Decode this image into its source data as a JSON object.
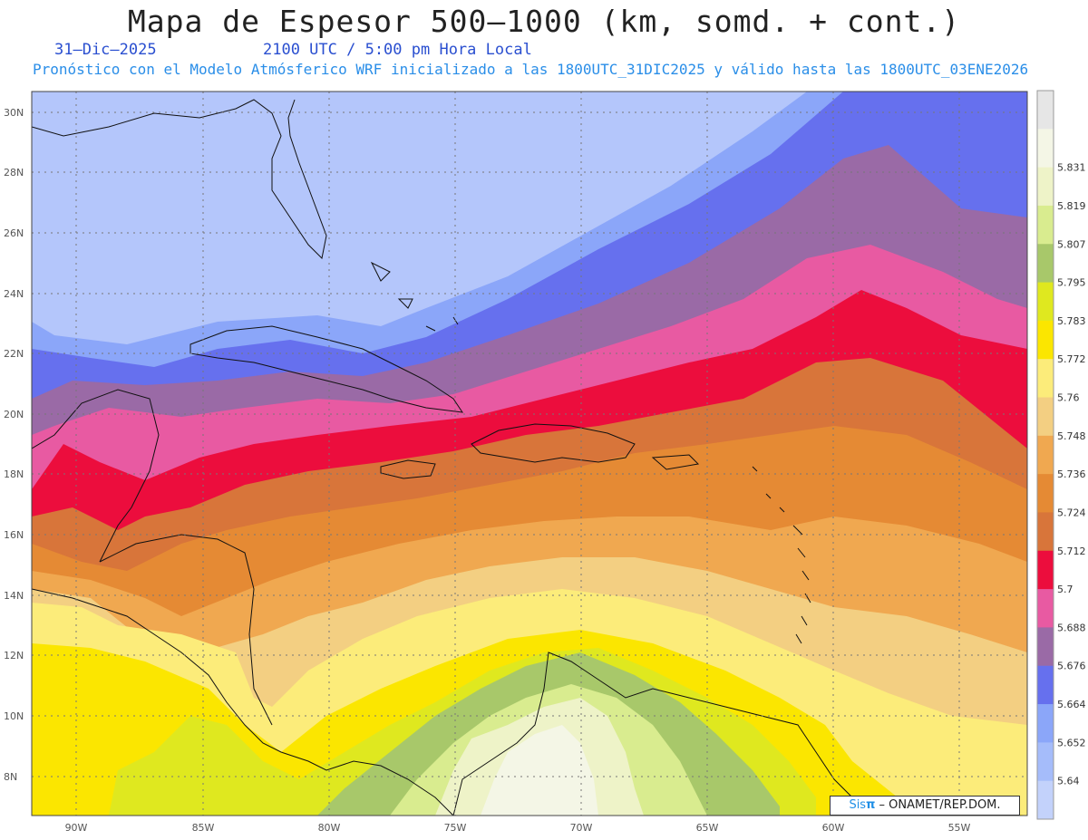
{
  "header": {
    "title": "Mapa de Espesor 500–1000 (km, somd. + cont.)",
    "date": "31–Dic–2025",
    "time": "2100 UTC / 5:00 pm Hora Local",
    "subtitle": "Pronóstico con el Modelo Atmósferico WRF inicializado a las 1800UTC_31DIC2025 y válido hasta las  1800UTC_03ENE2026"
  },
  "axes": {
    "lat_labels": [
      "30N",
      "28N",
      "26N",
      "24N",
      "22N",
      "20N",
      "18N",
      "16N",
      "14N",
      "12N",
      "10N",
      "8N"
    ],
    "lon_labels": [
      "90W",
      "85W",
      "80W",
      "75W",
      "70W",
      "65W",
      "60W",
      "55W"
    ]
  },
  "legend": {
    "levels": [
      {
        "label": "",
        "color": "#e6e6e6"
      },
      {
        "label": "5.831",
        "color": "#f4f6e6"
      },
      {
        "label": "5.819",
        "color": "#eef3c8"
      },
      {
        "label": "5.807",
        "color": "#d9ec8f"
      },
      {
        "label": "5.795",
        "color": "#a8c86a"
      },
      {
        "label": "5.783",
        "color": "#dfe81f"
      },
      {
        "label": "5.772",
        "color": "#fbe600"
      },
      {
        "label": "5.76",
        "color": "#fcec7a"
      },
      {
        "label": "5.748",
        "color": "#f3cf82"
      },
      {
        "label": "5.736",
        "color": "#f0a850"
      },
      {
        "label": "5.724",
        "color": "#e58a34"
      },
      {
        "label": "5.712",
        "color": "#d8753a"
      },
      {
        "label": "5.7",
        "color": "#ec0d3d"
      },
      {
        "label": "5.688",
        "color": "#e85aa2"
      },
      {
        "label": "5.676",
        "color": "#9a6aa6"
      },
      {
        "label": "5.664",
        "color": "#6670ee"
      },
      {
        "label": "5.652",
        "color": "#8ba6f9"
      },
      {
        "label": "5.64",
        "color": "#a5bcfa"
      },
      {
        "label": "",
        "color": "#c3d2fb"
      }
    ]
  },
  "credit": {
    "sis": "Sis",
    "pi": "π",
    "text": "– ONAMET/REP.DOM."
  }
}
